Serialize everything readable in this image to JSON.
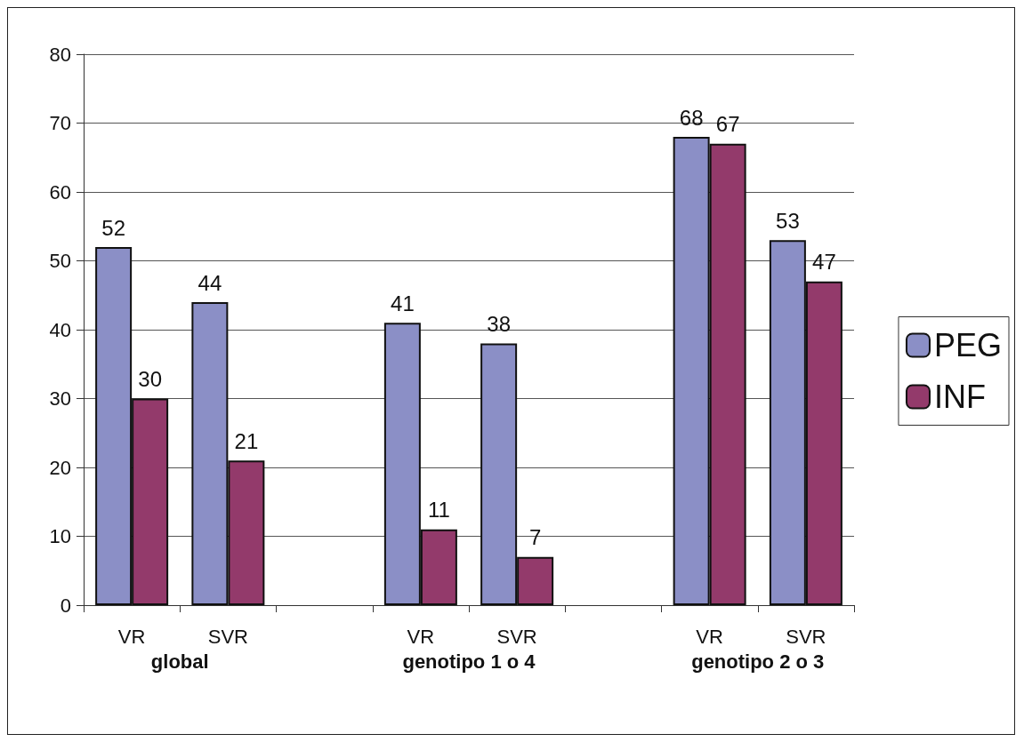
{
  "chart_data": {
    "type": "bar",
    "categories": [
      "VR",
      "SVR",
      null,
      "VR",
      "SVR",
      null,
      "VR",
      "SVR"
    ],
    "series": [
      {
        "name": "PEG",
        "color": "#8b8fc6",
        "values": [
          52,
          44,
          null,
          41,
          38,
          null,
          68,
          53
        ]
      },
      {
        "name": "INF",
        "color": "#933a6b",
        "values": [
          30,
          21,
          null,
          11,
          7,
          null,
          67,
          47
        ]
      }
    ],
    "ylim": [
      0,
      80
    ],
    "yticks": [
      0,
      10,
      20,
      30,
      40,
      50,
      60,
      70,
      80
    ],
    "grid": "y",
    "legend": "right",
    "data_labels": true,
    "annotations": [
      "global",
      "genotipo 1 o 4",
      "genotipo 2 o 3"
    ]
  }
}
